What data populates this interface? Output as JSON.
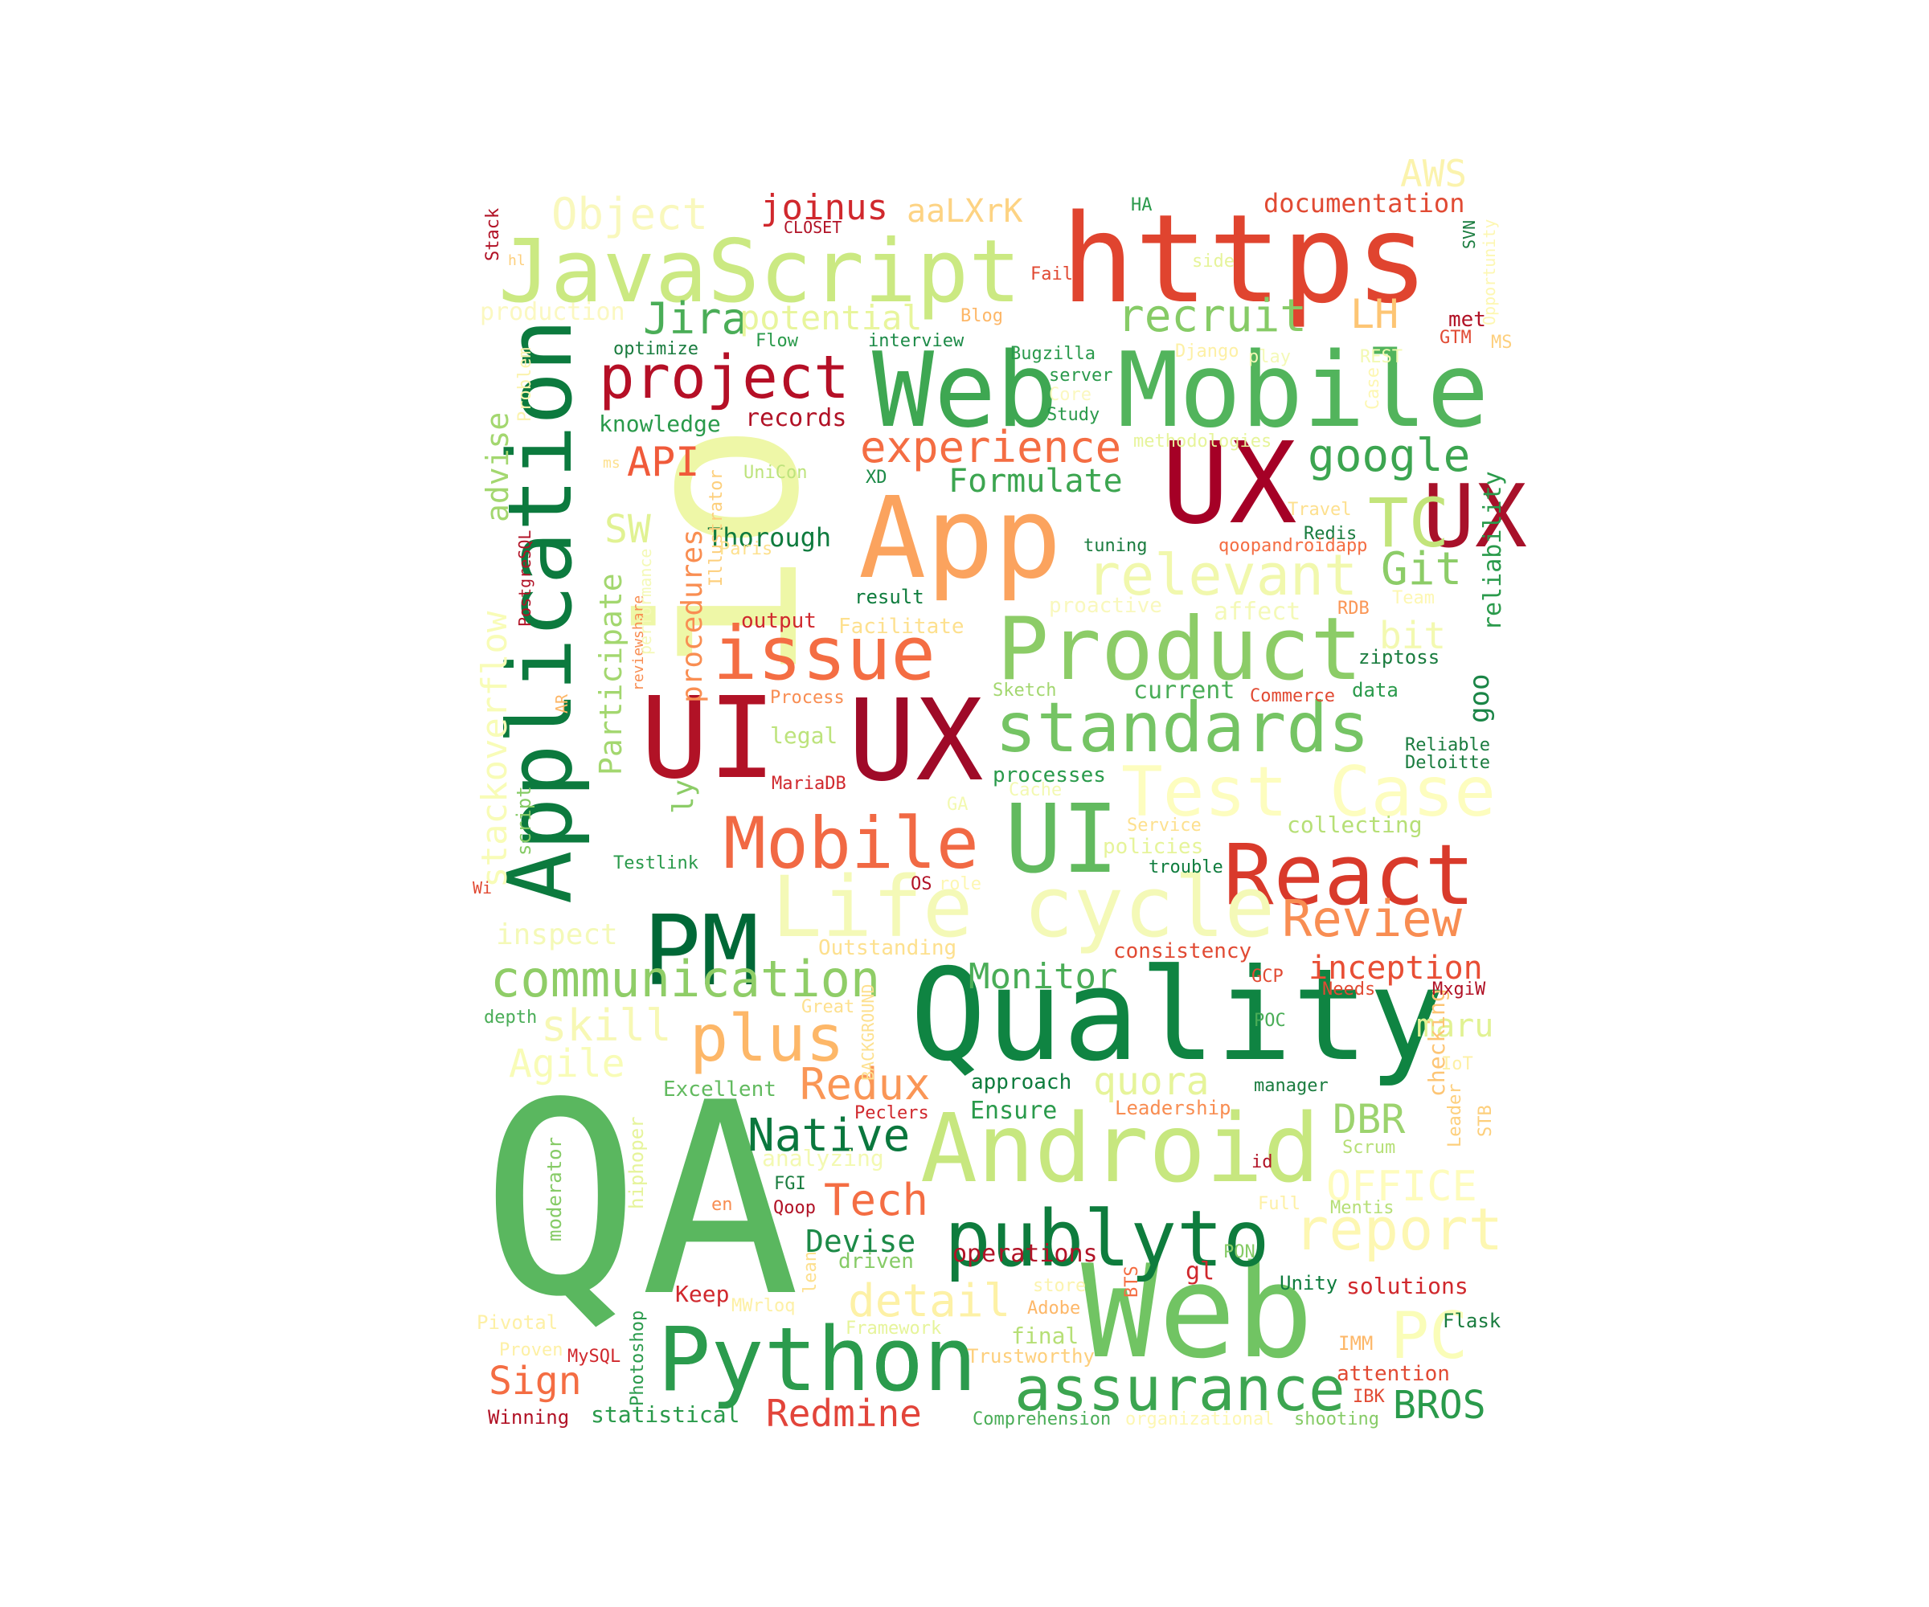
{
  "words": [
    {
      "text": "QA",
      "color": "#5ab75f"
    },
    {
      "text": "Quality",
      "color": "#0f8442"
    },
    {
      "text": "Web",
      "color": "#71c463"
    },
    {
      "text": "https",
      "color": "#e0442f"
    },
    {
      "text": "App",
      "color": "#fba35e"
    },
    {
      "text": "UI",
      "color": "#b11226"
    },
    {
      "text": "UX",
      "color": "#a50026"
    },
    {
      "text": "Mobile",
      "color": "#52b45c"
    },
    {
      "text": "Web",
      "color": "#3ea752"
    },
    {
      "text": "Android",
      "color": "#c7e77f"
    },
    {
      "text": "Application",
      "color": "#0c7a3e"
    },
    {
      "text": "JavaScript",
      "color": "#cbe982"
    },
    {
      "text": "Product",
      "color": "#8ccc67"
    },
    {
      "text": "io",
      "color": "#eef7a7"
    },
    {
      "text": "UI",
      "color": "#62ba5f"
    },
    {
      "text": "UX",
      "color": "#9f0a28"
    },
    {
      "text": "UX",
      "color": "#a8112a"
    },
    {
      "text": "PM",
      "color": "#006837"
    },
    {
      "text": "Python",
      "color": "#2b9b4d"
    },
    {
      "text": "publyto",
      "color": "#0e7c3d"
    },
    {
      "text": "React",
      "color": "#d93a2b"
    },
    {
      "text": "Life cycle",
      "color": "#f4f9b7"
    },
    {
      "text": "Test Case",
      "color": "#fdfdbf"
    },
    {
      "text": "issue",
      "color": "#f46d43"
    },
    {
      "text": "Mobile",
      "color": "#f16944"
    },
    {
      "text": "standards",
      "color": "#75c464"
    },
    {
      "text": "project",
      "color": "#b50f26"
    },
    {
      "text": "assurance",
      "color": "#3ca550"
    },
    {
      "text": "relevant",
      "color": "#f1f8ad"
    },
    {
      "text": "communication",
      "color": "#8fcd67"
    },
    {
      "text": "plus",
      "color": "#fdb768"
    },
    {
      "text": "TC",
      "color": "#c2e47a"
    },
    {
      "text": "experience",
      "color": "#f46d43"
    },
    {
      "text": "Review",
      "color": "#f88d52"
    },
    {
      "text": "PC",
      "color": "#fafdb8"
    },
    {
      "text": "report",
      "color": "#fdf7b2"
    },
    {
      "text": "recruit",
      "color": "#86cb66"
    },
    {
      "text": "google",
      "color": "#3ca550"
    },
    {
      "text": "Native",
      "color": "#0a773d"
    },
    {
      "text": "Python",
      "color": "#2b9b4d"
    },
    {
      "text": "Git",
      "color": "#8ccc67"
    },
    {
      "text": "Redux",
      "color": "#fa9656"
    },
    {
      "text": "Tech",
      "color": "#f46d43"
    },
    {
      "text": "Jira",
      "color": "#4aad57"
    },
    {
      "text": "potential",
      "color": "#e8f59c"
    },
    {
      "text": "Object",
      "color": "#f9f8bd"
    },
    {
      "text": "joinus",
      "color": "#d0282d"
    },
    {
      "text": "aaLXrK",
      "color": "#fdd383"
    },
    {
      "text": "documentation",
      "color": "#e14a33"
    },
    {
      "text": "Monitor",
      "color": "#4aad57"
    },
    {
      "text": "Formulate",
      "color": "#3ca550"
    },
    {
      "text": "API",
      "color": "#f05a3a"
    },
    {
      "text": "Redmine",
      "color": "#e2443a"
    },
    {
      "text": "Sign",
      "color": "#f46d43"
    },
    {
      "text": "BROS",
      "color": "#2a9a4b"
    },
    {
      "text": "detail",
      "color": "#fdf1a6"
    },
    {
      "text": "skill",
      "color": "#f7f8b5"
    },
    {
      "text": "Agile",
      "color": "#f8fcb7"
    },
    {
      "text": "quora",
      "color": "#e6f49a"
    },
    {
      "text": "DBR",
      "color": "#9cd36e"
    },
    {
      "text": "OFFICE",
      "color": "#fefcbd"
    },
    {
      "text": "inception",
      "color": "#e84e35"
    },
    {
      "text": "Devise",
      "color": "#1c8a47"
    },
    {
      "text": "stackoverflow",
      "color": "#f8fcb7"
    },
    {
      "text": "Participate",
      "color": "#a3d76f"
    },
    {
      "text": "procedures",
      "color": "#f98e52"
    },
    {
      "text": "advise",
      "color": "#a3d76f"
    },
    {
      "text": "SW",
      "color": "#e1f293"
    },
    {
      "text": "LH",
      "color": "#fdc574"
    },
    {
      "text": "AWS",
      "color": "#fbf3ad"
    },
    {
      "text": "bit",
      "color": "#f3f9b1"
    },
    {
      "text": "goo",
      "color": "#1a8546"
    },
    {
      "text": "ly",
      "color": "#8ccc67"
    },
    {
      "text": "reliability",
      "color": "#2a9a4b"
    },
    {
      "text": "maru",
      "color": "#e1f293"
    },
    {
      "text": "checking",
      "color": "#fdc574"
    },
    {
      "text": "Thorough",
      "color": "#0f7b3e"
    },
    {
      "text": "records",
      "color": "#b11226"
    },
    {
      "text": "knowledge",
      "color": "#2a9a4b"
    },
    {
      "text": "production",
      "color": "#fbf8c0"
    },
    {
      "text": "optimize",
      "color": "#1a7c3f"
    },
    {
      "text": "Flow",
      "color": "#2a9a4b"
    },
    {
      "text": "interview",
      "color": "#1c8a47"
    },
    {
      "text": "Blog",
      "color": "#fdb768"
    },
    {
      "text": "met",
      "color": "#b11226"
    },
    {
      "text": "Bugzilla",
      "color": "#2a9a4b"
    },
    {
      "text": "Django",
      "color": "#fdf0a5"
    },
    {
      "text": "play",
      "color": "#f4f9b7"
    },
    {
      "text": "REST",
      "color": "#f3f9b1"
    },
    {
      "text": "GTM",
      "color": "#e14a33"
    },
    {
      "text": "MS",
      "color": "#fdcf7c"
    },
    {
      "text": "server",
      "color": "#2a9a4b"
    },
    {
      "text": "Core",
      "color": "#fbf8c0"
    },
    {
      "text": "Study",
      "color": "#2a9a4b"
    },
    {
      "text": "methodologies",
      "color": "#e6f49a"
    },
    {
      "text": "XD",
      "color": "#1c8a47"
    },
    {
      "text": "UniCon",
      "color": "#bde37c"
    },
    {
      "text": "tuning",
      "color": "#1a7c3f"
    },
    {
      "text": "Travel",
      "color": "#fde08e"
    },
    {
      "text": "Redis",
      "color": "#1a7c3f"
    },
    {
      "text": "qoopandroidapp",
      "color": "#f46d43"
    },
    {
      "text": "result",
      "color": "#0e7c3d"
    },
    {
      "text": "output",
      "color": "#d0282d"
    },
    {
      "text": "Facilitate",
      "color": "#fde08e"
    },
    {
      "text": "proactive",
      "color": "#f9f8bd"
    },
    {
      "text": "affect",
      "color": "#f4f9b7"
    },
    {
      "text": "RDB",
      "color": "#fa9656"
    },
    {
      "text": "Team",
      "color": "#fdf7b2"
    },
    {
      "text": "ziptoss",
      "color": "#1a7c3f"
    },
    {
      "text": "data",
      "color": "#2a9a4b"
    },
    {
      "text": "current",
      "color": "#4aad57"
    },
    {
      "text": "Commerce",
      "color": "#e14a33"
    },
    {
      "text": "Sketch",
      "color": "#a3d76f"
    },
    {
      "text": "Process",
      "color": "#f88d52"
    },
    {
      "text": "legal",
      "color": "#bde37c"
    },
    {
      "text": "Reliable",
      "color": "#1a7c3f"
    },
    {
      "text": "Deloitte",
      "color": "#1a7c3f"
    },
    {
      "text": "processes",
      "color": "#2a9a4b"
    },
    {
      "text": "MariaDB",
      "color": "#d0282d"
    },
    {
      "text": "Cache",
      "color": "#f3f9b1"
    },
    {
      "text": "collecting",
      "color": "#b6df76"
    },
    {
      "text": "Service",
      "color": "#fde08e"
    },
    {
      "text": "policies",
      "color": "#e6f49a"
    },
    {
      "text": "trouble",
      "color": "#0e7c3d"
    },
    {
      "text": "role",
      "color": "#fdf7b2"
    },
    {
      "text": "OS",
      "color": "#b11226"
    },
    {
      "text": "GA",
      "color": "#f3f9b1"
    },
    {
      "text": "Testlink",
      "color": "#2a9a4b"
    },
    {
      "text": "inspect",
      "color": "#f4f9b7"
    },
    {
      "text": "Outstanding",
      "color": "#fde08e"
    },
    {
      "text": "consistency",
      "color": "#e14a33"
    },
    {
      "text": "GCP",
      "color": "#e14a33"
    },
    {
      "text": "Needs",
      "color": "#e14a33"
    },
    {
      "text": "MxgiW",
      "color": "#b11226"
    },
    {
      "text": "depth",
      "color": "#4aad57"
    },
    {
      "text": "Great",
      "color": "#fde08e"
    },
    {
      "text": "POC",
      "color": "#4aad57"
    },
    {
      "text": "IoT",
      "color": "#fdf0a5"
    },
    {
      "text": "Excellent",
      "color": "#62ba5f"
    },
    {
      "text": "approach",
      "color": "#0e7c3d"
    },
    {
      "text": "manager",
      "color": "#1a7c3f"
    },
    {
      "text": "Leadership",
      "color": "#f88d52"
    },
    {
      "text": "Ensure",
      "color": "#2a9a4b"
    },
    {
      "text": "Peclers",
      "color": "#d0282d"
    },
    {
      "text": "Leader",
      "color": "#fdcf7c"
    },
    {
      "text": "STB",
      "color": "#fdcf7c"
    },
    {
      "text": "Scrum",
      "color": "#b6df76"
    },
    {
      "text": "analyzing",
      "color": "#f3f9b1"
    },
    {
      "text": "id",
      "color": "#b11226"
    },
    {
      "text": "FGI",
      "color": "#1a7c3f"
    },
    {
      "text": "Qoop",
      "color": "#b11226"
    },
    {
      "text": "en",
      "color": "#f88d52"
    },
    {
      "text": "Full",
      "color": "#fdf0a5"
    },
    {
      "text": "Mentis",
      "color": "#b6df76"
    },
    {
      "text": "moderator",
      "color": "#86cb66"
    },
    {
      "text": "hiphoper",
      "color": "#e6f49a"
    },
    {
      "text": "driven",
      "color": "#86cb66"
    },
    {
      "text": "operations",
      "color": "#b11226"
    },
    {
      "text": "PON",
      "color": "#86cb66"
    },
    {
      "text": "gl",
      "color": "#d0282d"
    },
    {
      "text": "Unity",
      "color": "#0e7c3d"
    },
    {
      "text": "solutions",
      "color": "#d0282d"
    },
    {
      "text": "lean",
      "color": "#fde08e"
    },
    {
      "text": "store",
      "color": "#fbf3ad"
    },
    {
      "text": "BTS",
      "color": "#f46d43"
    },
    {
      "text": "Keep",
      "color": "#d0282d"
    },
    {
      "text": "MWrloq",
      "color": "#fdf0a5"
    },
    {
      "text": "Adobe",
      "color": "#fdb768"
    },
    {
      "text": "Flask",
      "color": "#1a7c3f"
    },
    {
      "text": "Pivotal",
      "color": "#fdf0a5"
    },
    {
      "text": "Framework",
      "color": "#e6f49a"
    },
    {
      "text": "final",
      "color": "#b6df76"
    },
    {
      "text": "IMM",
      "color": "#fdb768"
    },
    {
      "text": "Proven",
      "color": "#fdf0a5"
    },
    {
      "text": "MySQL",
      "color": "#d0282d"
    },
    {
      "text": "Photoshop",
      "color": "#2a9a4b"
    },
    {
      "text": "Trustworthy",
      "color": "#fdcf7c"
    },
    {
      "text": "attention",
      "color": "#e14a33"
    },
    {
      "text": "IBK",
      "color": "#e14a33"
    },
    {
      "text": "Winning",
      "color": "#b11226"
    },
    {
      "text": "statistical",
      "color": "#2a9a4b"
    },
    {
      "text": "Comprehension",
      "color": "#4aad57"
    },
    {
      "text": "organizational",
      "color": "#fdf7b2"
    },
    {
      "text": "shooting",
      "color": "#86cb66"
    },
    {
      "text": "BACKGROUND",
      "color": "#fde08e"
    },
    {
      "text": "script",
      "color": "#86cb66"
    },
    {
      "text": "Wi",
      "color": "#e14a33"
    },
    {
      "text": "AR",
      "color": "#fdb768"
    },
    {
      "text": "reviewshare",
      "color": "#f88d52"
    },
    {
      "text": "performance",
      "color": "#f4f9b7"
    },
    {
      "text": "Illustrator",
      "color": "#fdcf7c"
    },
    {
      "text": "Paris",
      "color": "#fde08e"
    },
    {
      "text": "PostgreSQL",
      "color": "#b11226"
    },
    {
      "text": "ms",
      "color": "#fde08e"
    },
    {
      "text": "Problem",
      "color": "#fbf3ad"
    },
    {
      "text": "Stack",
      "color": "#b11226"
    },
    {
      "text": "hl",
      "color": "#fdcf7c"
    },
    {
      "text": "CLOSET",
      "color": "#b11226"
    },
    {
      "text": "HA",
      "color": "#2a9a4b"
    },
    {
      "text": "Fail",
      "color": "#e14a33"
    },
    {
      "text": "side",
      "color": "#e6f49a"
    },
    {
      "text": "SVN",
      "color": "#1a7c3f"
    },
    {
      "text": "Opportunity",
      "color": "#fdf7b2"
    },
    {
      "text": "Case",
      "color": "#fdf7b2"
    }
  ]
}
